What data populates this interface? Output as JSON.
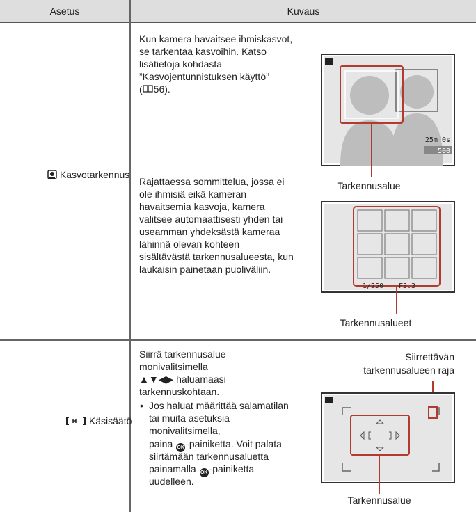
{
  "table": {
    "headers": [
      "Asetus",
      "Kuvaus"
    ],
    "rows": [
      {
        "setting": "Kasvotarkennus",
        "paragraph_1": [
          "Kun kamera havaitsee ihmiskasvot,",
          "se tarkentaa kasvoihin. Katso",
          "lisätietoja kohdasta",
          "”Kasvojentunnistuksen käyttö”"
        ],
        "reference": {
          "open": "(",
          "page": "56)."
        },
        "paragraph_2": [
          "Rajattaessa sommittelua, jossa ei",
          "ole ihmisiä eikä kameran",
          "havaitsemia kasvoja, kamera",
          "valitsee automaattisesti yhden tai",
          "useamman yhdeksästä kameraa",
          "lähinnä olevan kohteen",
          "sisältävästä tarkennusalueesta, kun",
          "laukaisin painetaan puoliväliin."
        ],
        "figure_1": {
          "caption": "Tarkennusalue",
          "remaining_time": "25m 0s",
          "shots": "500"
        },
        "figure_2": {
          "caption": "Tarkennusalueet",
          "shutter": "1/250",
          "aperture": "F3.3"
        }
      },
      {
        "setting": "Käsisäätö",
        "paragraph": [
          "Siirrä tarkennusalue",
          "monivalitsimella",
          "▲▼◀▶ haluamaasi",
          "tarkennuskohtaan."
        ],
        "bullet": {
          "lines_1": [
            "Jos haluat määrittää salamatilan",
            "tai muita asetuksia",
            "monivalitsimella,"
          ],
          "press": "paina",
          "press_suffix": "-painiketta. Voit palata",
          "line_5": "siirtämään tarkennusaluetta",
          "press_again": "painamalla",
          "press_again_suffix": "-painiketta",
          "line_8": "uudelleen."
        },
        "figure": {
          "top_caption": [
            "Siirrettävän",
            "tarkennusalueen raja"
          ],
          "caption": "Tarkennusalue"
        }
      }
    ]
  }
}
